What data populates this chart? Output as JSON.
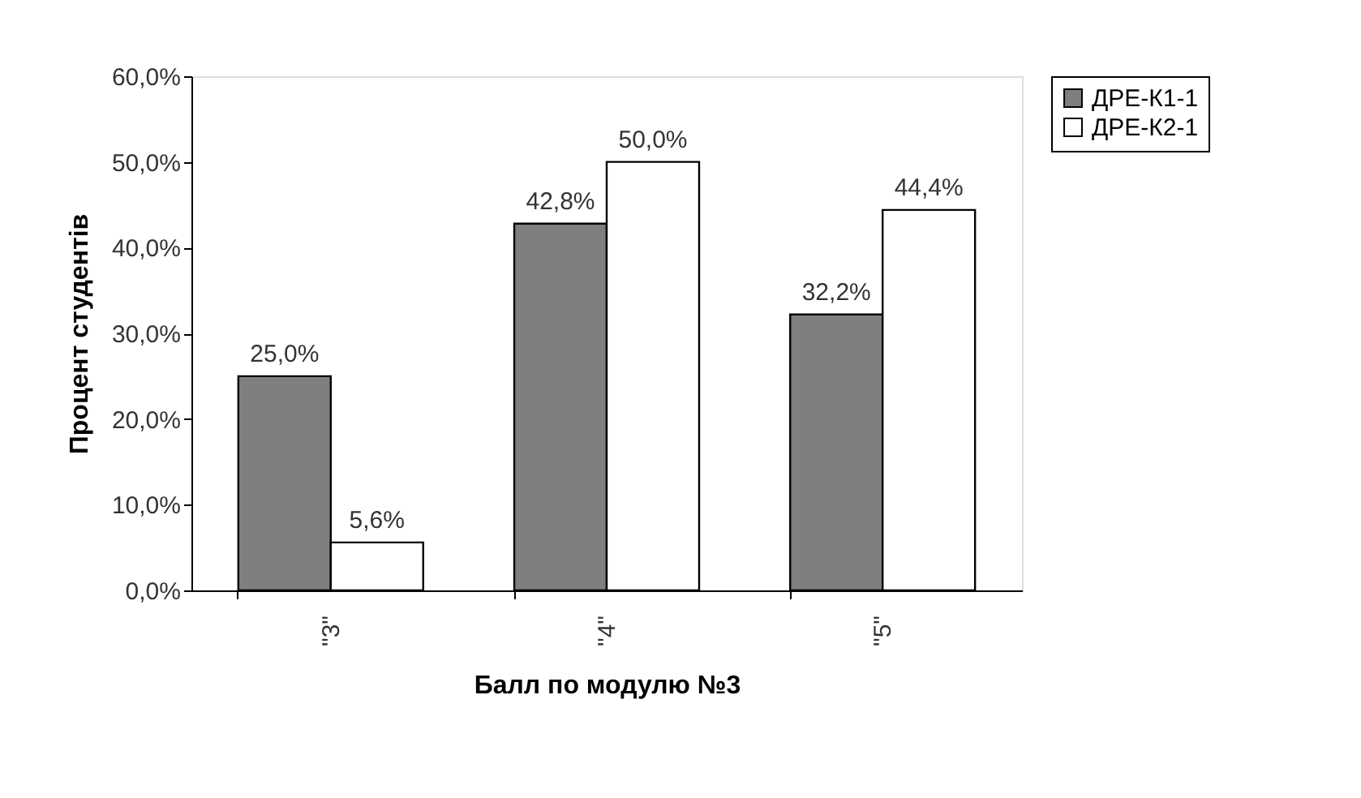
{
  "chart_data": {
    "type": "bar",
    "xlabel": "Балл по модулю №3",
    "ylabel": "Процент студентів",
    "categories": [
      "\"3\"",
      "\"4\"",
      "\"5\""
    ],
    "series": [
      {
        "name": "ДРЕ-К1-1",
        "color": "#7f7f7f",
        "values": [
          25.0,
          42.8,
          32.2
        ],
        "value_labels": [
          "25,0%",
          "42,8%",
          "32,2%"
        ]
      },
      {
        "name": "ДРЕ-К2-1",
        "color": "#ffffff",
        "values": [
          5.6,
          50.0,
          44.4
        ],
        "value_labels": [
          "5,6%",
          "50,0%",
          "44,4%"
        ]
      }
    ],
    "ylim": [
      0,
      60
    ],
    "yticks": [
      {
        "value": 0,
        "label": "0,0%"
      },
      {
        "value": 10,
        "label": "10,0%"
      },
      {
        "value": 20,
        "label": "20,0%"
      },
      {
        "value": 30,
        "label": "30,0%"
      },
      {
        "value": 40,
        "label": "40,0%"
      },
      {
        "value": 50,
        "label": "50,0%"
      },
      {
        "value": 60,
        "label": "60,0%"
      }
    ],
    "grid": false,
    "legend": "right"
  }
}
